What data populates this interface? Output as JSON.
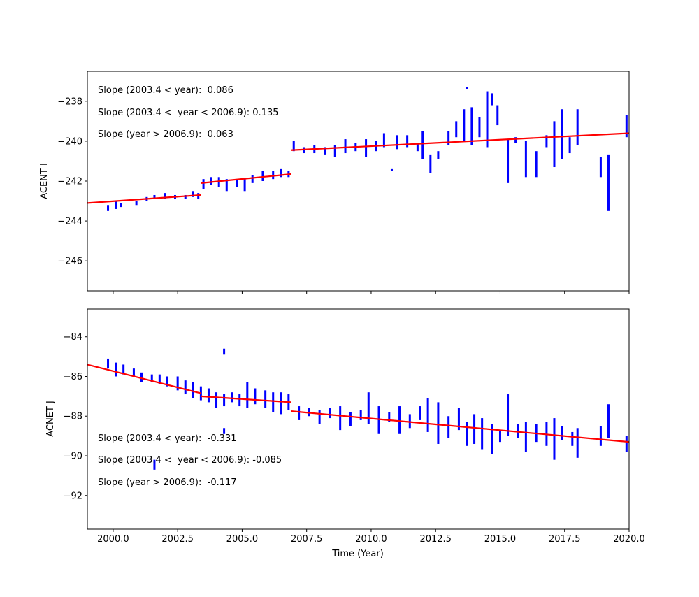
{
  "chart_data": [
    {
      "type": "scatter",
      "ylabel": "ACENT I",
      "xlabel": "",
      "xlim": [
        1999.0,
        2020.0
      ],
      "ylim": [
        -247.5,
        -236.5
      ],
      "xticks": [
        2000.0,
        2002.5,
        2005.0,
        2007.5,
        2010.0,
        2012.5,
        2015.0,
        2017.5,
        2020.0
      ],
      "xtick_labels_shown": false,
      "yticks": [
        -238,
        -240,
        -242,
        -244,
        -246
      ],
      "ytick_labels": [
        "−238",
        "−240",
        "−242",
        "−244",
        "−246"
      ],
      "grid": false,
      "point_color": "#0000ff",
      "fit_color": "#ff0000",
      "points_year_low_high": [
        [
          1999.8,
          -243.5,
          -243.2
        ],
        [
          2000.1,
          -243.4,
          -243.0
        ],
        [
          2000.3,
          -243.3,
          -243.1
        ],
        [
          2000.9,
          -243.2,
          -243.0
        ],
        [
          2001.3,
          -243.0,
          -242.8
        ],
        [
          2001.6,
          -242.9,
          -242.7
        ],
        [
          2002.0,
          -242.9,
          -242.6
        ],
        [
          2002.4,
          -242.9,
          -242.7
        ],
        [
          2002.8,
          -242.9,
          -242.7
        ],
        [
          2003.1,
          -242.8,
          -242.5
        ],
        [
          2003.3,
          -242.9,
          -242.6
        ],
        [
          2003.5,
          -242.4,
          -241.9
        ],
        [
          2003.8,
          -242.2,
          -241.8
        ],
        [
          2004.1,
          -242.3,
          -241.8
        ],
        [
          2004.4,
          -242.5,
          -241.9
        ],
        [
          2004.8,
          -242.3,
          -241.9
        ],
        [
          2005.1,
          -242.5,
          -241.9
        ],
        [
          2005.4,
          -242.1,
          -241.7
        ],
        [
          2005.8,
          -242.0,
          -241.5
        ],
        [
          2006.2,
          -241.9,
          -241.5
        ],
        [
          2006.5,
          -241.8,
          -241.4
        ],
        [
          2006.8,
          -241.8,
          -241.5
        ],
        [
          2007.0,
          -240.5,
          -240.0
        ],
        [
          2007.4,
          -240.6,
          -240.3
        ],
        [
          2007.8,
          -240.6,
          -240.2
        ],
        [
          2008.2,
          -240.7,
          -240.3
        ],
        [
          2008.6,
          -240.8,
          -240.2
        ],
        [
          2009.0,
          -240.6,
          -239.9
        ],
        [
          2009.4,
          -240.5,
          -240.1
        ],
        [
          2009.8,
          -240.8,
          -239.9
        ],
        [
          2010.2,
          -240.5,
          -240.0
        ],
        [
          2010.5,
          -240.3,
          -239.6
        ],
        [
          2010.8,
          -241.5,
          -241.4
        ],
        [
          2011.0,
          -240.4,
          -239.7
        ],
        [
          2011.4,
          -240.3,
          -239.7
        ],
        [
          2011.8,
          -240.5,
          -240.1
        ],
        [
          2012.0,
          -240.9,
          -239.5
        ],
        [
          2012.3,
          -241.6,
          -240.7
        ],
        [
          2012.6,
          -240.9,
          -240.5
        ],
        [
          2013.0,
          -240.2,
          -239.5
        ],
        [
          2013.3,
          -239.8,
          -239.0
        ],
        [
          2013.6,
          -240.0,
          -238.4
        ],
        [
          2013.7,
          -237.4,
          -237.3
        ],
        [
          2013.9,
          -240.2,
          -238.3
        ],
        [
          2014.2,
          -239.8,
          -238.8
        ],
        [
          2014.5,
          -240.3,
          -237.5
        ],
        [
          2014.7,
          -238.2,
          -237.6
        ],
        [
          2014.9,
          -239.2,
          -238.2
        ],
        [
          2015.3,
          -242.1,
          -239.9
        ],
        [
          2015.6,
          -240.1,
          -239.8
        ],
        [
          2016.0,
          -241.8,
          -240.0
        ],
        [
          2016.4,
          -241.8,
          -240.5
        ],
        [
          2016.8,
          -240.3,
          -239.7
        ],
        [
          2017.1,
          -241.3,
          -239.0
        ],
        [
          2017.4,
          -240.9,
          -238.4
        ],
        [
          2017.7,
          -240.6,
          -239.8
        ],
        [
          2018.0,
          -240.2,
          -238.4
        ],
        [
          2018.9,
          -241.8,
          -240.8
        ],
        [
          2019.2,
          -243.5,
          -240.7
        ],
        [
          2019.9,
          -239.8,
          -238.7
        ]
      ],
      "fit_lines": [
        {
          "x": [
            1999.0,
            2003.4
          ],
          "y": [
            -243.1,
            -242.7
          ]
        },
        {
          "x": [
            2003.4,
            2006.9
          ],
          "y": [
            -242.1,
            -241.65
          ]
        },
        {
          "x": [
            2006.9,
            2020.0
          ],
          "y": [
            -240.45,
            -239.6
          ]
        }
      ],
      "annotations": [
        "Slope (2003.4 < year):  0.086",
        "Slope (2003.4 <  year < 2006.9): 0.135",
        "Slope (year > 2006.9):  0.063"
      ]
    },
    {
      "type": "scatter",
      "ylabel": "ACNET J",
      "xlabel": "Time (Year)",
      "xlim": [
        1999.0,
        2020.0
      ],
      "ylim": [
        -93.7,
        -82.6
      ],
      "xticks": [
        2000.0,
        2002.5,
        2005.0,
        2007.5,
        2010.0,
        2012.5,
        2015.0,
        2017.5,
        2020.0
      ],
      "xtick_labels": [
        "2000.0",
        "2002.5",
        "2005.0",
        "2007.5",
        "2010.0",
        "2012.5",
        "2015.0",
        "2017.5",
        "2020.0"
      ],
      "yticks": [
        -84,
        -86,
        -88,
        -90,
        -92
      ],
      "ytick_labels": [
        "−84",
        "−86",
        "−88",
        "−90",
        "−92"
      ],
      "grid": false,
      "point_color": "#0000ff",
      "fit_color": "#ff0000",
      "points_year_low_high": [
        [
          1999.8,
          -85.6,
          -85.1
        ],
        [
          2000.1,
          -86.0,
          -85.3
        ],
        [
          2000.4,
          -85.9,
          -85.4
        ],
        [
          2000.8,
          -86.0,
          -85.6
        ],
        [
          2001.1,
          -86.3,
          -85.8
        ],
        [
          2001.5,
          -86.3,
          -85.9
        ],
        [
          2001.6,
          -90.7,
          -90.2
        ],
        [
          2001.8,
          -86.4,
          -85.9
        ],
        [
          2002.1,
          -86.5,
          -86.0
        ],
        [
          2002.5,
          -86.7,
          -86.0
        ],
        [
          2002.8,
          -86.9,
          -86.2
        ],
        [
          2003.1,
          -87.1,
          -86.3
        ],
        [
          2003.4,
          -87.2,
          -86.5
        ],
        [
          2003.7,
          -87.3,
          -86.6
        ],
        [
          2004.0,
          -87.6,
          -86.8
        ],
        [
          2004.3,
          -84.9,
          -84.6
        ],
        [
          2004.3,
          -87.5,
          -86.9
        ],
        [
          2004.3,
          -88.9,
          -88.6
        ],
        [
          2004.6,
          -87.3,
          -86.8
        ],
        [
          2004.9,
          -87.5,
          -86.9
        ],
        [
          2005.2,
          -87.6,
          -86.3
        ],
        [
          2005.5,
          -87.4,
          -86.6
        ],
        [
          2005.9,
          -87.6,
          -86.7
        ],
        [
          2006.2,
          -87.8,
          -86.8
        ],
        [
          2006.5,
          -87.9,
          -86.8
        ],
        [
          2006.8,
          -87.7,
          -86.9
        ],
        [
          2007.2,
          -88.2,
          -87.5
        ],
        [
          2007.6,
          -88.0,
          -87.6
        ],
        [
          2008.0,
          -88.4,
          -87.7
        ],
        [
          2008.4,
          -88.1,
          -87.6
        ],
        [
          2008.8,
          -88.7,
          -87.5
        ],
        [
          2009.2,
          -88.5,
          -87.8
        ],
        [
          2009.6,
          -88.2,
          -87.7
        ],
        [
          2009.9,
          -88.4,
          -86.8
        ],
        [
          2010.3,
          -88.9,
          -87.5
        ],
        [
          2010.7,
          -88.3,
          -87.8
        ],
        [
          2011.1,
          -88.9,
          -87.5
        ],
        [
          2011.5,
          -88.6,
          -87.9
        ],
        [
          2011.9,
          -88.2,
          -87.5
        ],
        [
          2012.2,
          -88.8,
          -87.1
        ],
        [
          2012.6,
          -89.4,
          -87.3
        ],
        [
          2013.0,
          -89.1,
          -88.0
        ],
        [
          2013.4,
          -88.7,
          -87.6
        ],
        [
          2013.7,
          -89.5,
          -88.3
        ],
        [
          2014.0,
          -89.4,
          -87.9
        ],
        [
          2014.3,
          -89.7,
          -88.1
        ],
        [
          2014.7,
          -89.9,
          -88.4
        ],
        [
          2015.0,
          -89.3,
          -88.7
        ],
        [
          2015.3,
          -89.0,
          -86.9
        ],
        [
          2015.7,
          -89.1,
          -88.4
        ],
        [
          2016.0,
          -89.8,
          -88.3
        ],
        [
          2016.4,
          -89.3,
          -88.4
        ],
        [
          2016.8,
          -89.5,
          -88.3
        ],
        [
          2017.1,
          -90.2,
          -88.1
        ],
        [
          2017.4,
          -89.2,
          -88.5
        ],
        [
          2017.8,
          -89.5,
          -88.8
        ],
        [
          2018.0,
          -90.1,
          -88.6
        ],
        [
          2018.9,
          -89.5,
          -88.5
        ],
        [
          2019.2,
          -89.1,
          -87.4
        ],
        [
          2019.9,
          -89.8,
          -89.0
        ]
      ],
      "fit_lines": [
        {
          "x": [
            1999.0,
            2003.4
          ],
          "y": [
            -85.4,
            -86.85
          ]
        },
        {
          "x": [
            2003.4,
            2006.9
          ],
          "y": [
            -87.0,
            -87.3
          ]
        },
        {
          "x": [
            2006.9,
            2020.0
          ],
          "y": [
            -87.75,
            -89.3
          ]
        }
      ],
      "annotations": [
        "Slope (2003.4 < year):  -0.331",
        "Slope (2003.4 <  year < 2006.9): -0.085",
        "Slope (year > 2006.9):  -0.117"
      ]
    }
  ]
}
